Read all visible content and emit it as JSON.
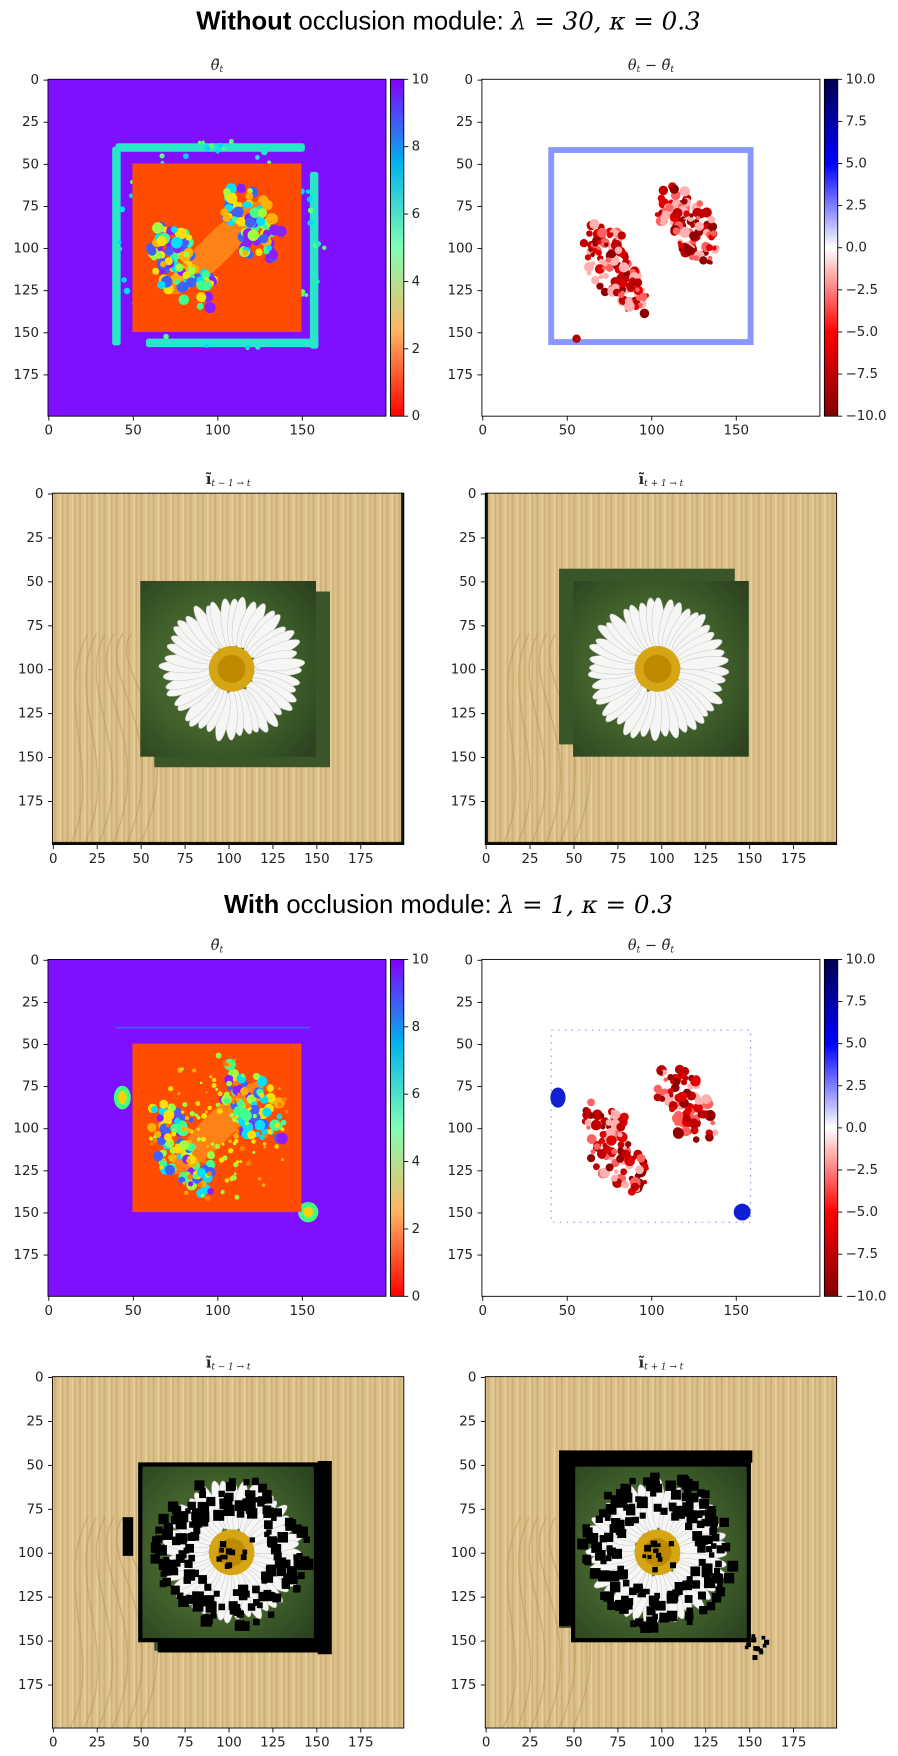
{
  "section_titles": [
    {
      "bold": "Without",
      "text": "occlusion module:",
      "math": "λ = 30, κ = 0.3"
    },
    {
      "bold": "With",
      "text": "occlusion module:",
      "math": "λ = 1, κ = 0.3"
    }
  ],
  "chart_data": [
    {
      "type": "heatmap",
      "title": [
        {
          "text": "θ̃"
        },
        {
          "sub": "t"
        }
      ],
      "xlim": [
        -0.5,
        199.5
      ],
      "ylim": [
        199.5,
        -0.5
      ],
      "xticks": [
        0,
        50,
        100,
        150
      ],
      "yticks": [
        0,
        25,
        50,
        75,
        100,
        125,
        150,
        175
      ],
      "colorbar": {
        "colormap": "rainbow_r",
        "lim": [
          0,
          10
        ],
        "ticks": [
          0,
          2,
          4,
          6,
          8,
          10
        ]
      }
    },
    {
      "type": "heatmap",
      "title": [
        {
          "text": "θ"
        },
        {
          "sub": "t"
        },
        {
          "text": " − θ̃"
        },
        {
          "sub": "t"
        }
      ],
      "xlim": [
        -0.5,
        199.5
      ],
      "ylim": [
        199.5,
        -0.5
      ],
      "xticks": [
        0,
        50,
        100,
        150
      ],
      "yticks": [
        0,
        25,
        50,
        75,
        100,
        125,
        150,
        175
      ],
      "colorbar": {
        "colormap": "seismic_r",
        "lim": [
          -10,
          10
        ],
        "ticks": [
          {
            "value": -10,
            "label": "−10.0"
          },
          {
            "value": -7.5,
            "label": "−7.5"
          },
          {
            "value": -5,
            "label": "−5.0"
          },
          {
            "value": -2.5,
            "label": "−2.5"
          },
          {
            "value": 0,
            "label": "0.0"
          },
          {
            "value": 2.5,
            "label": "2.5"
          },
          {
            "value": 5,
            "label": "5.0"
          },
          {
            "value": 7.5,
            "label": "7.5"
          },
          {
            "value": 10,
            "label": "10.0"
          }
        ]
      }
    },
    {
      "type": "image",
      "title": [
        {
          "text": "ĩ"
        },
        {
          "sub": "t − 1 → t"
        }
      ],
      "xlim": [
        -0.5,
        199.5
      ],
      "ylim": [
        199.5,
        -0.5
      ],
      "xticks": [
        0,
        25,
        50,
        75,
        100,
        125,
        150,
        175
      ],
      "yticks": [
        0,
        25,
        50,
        75,
        100,
        125,
        150,
        175
      ]
    },
    {
      "type": "image",
      "title": [
        {
          "text": "ĩ"
        },
        {
          "sub": "t + 1 → t"
        }
      ],
      "xlim": [
        -0.5,
        199.5
      ],
      "ylim": [
        199.5,
        -0.5
      ],
      "xticks": [
        0,
        25,
        50,
        75,
        100,
        125,
        150,
        175
      ],
      "yticks": [
        0,
        25,
        50,
        75,
        100,
        125,
        150,
        175
      ]
    },
    {
      "type": "heatmap",
      "title": [
        {
          "text": "θ̃"
        },
        {
          "sub": "t"
        }
      ],
      "xlim": [
        -0.5,
        199.5
      ],
      "ylim": [
        199.5,
        -0.5
      ],
      "xticks": [
        0,
        50,
        100,
        150
      ],
      "yticks": [
        0,
        25,
        50,
        75,
        100,
        125,
        150,
        175
      ],
      "colorbar": {
        "colormap": "rainbow_r",
        "lim": [
          0,
          10
        ],
        "ticks": [
          0,
          2,
          4,
          6,
          8,
          10
        ]
      }
    },
    {
      "type": "heatmap",
      "title": [
        {
          "text": "θ"
        },
        {
          "sub": "t"
        },
        {
          "text": " − θ̃"
        },
        {
          "sub": "t"
        }
      ],
      "xlim": [
        -0.5,
        199.5
      ],
      "ylim": [
        199.5,
        -0.5
      ],
      "xticks": [
        0,
        50,
        100,
        150
      ],
      "yticks": [
        0,
        25,
        50,
        75,
        100,
        125,
        150,
        175
      ],
      "colorbar": {
        "colormap": "seismic_r",
        "lim": [
          -10,
          10
        ],
        "ticks": [
          {
            "value": -10,
            "label": "−10.0"
          },
          {
            "value": -7.5,
            "label": "−7.5"
          },
          {
            "value": -5,
            "label": "−5.0"
          },
          {
            "value": -2.5,
            "label": "−2.5"
          },
          {
            "value": 0,
            "label": "0.0"
          },
          {
            "value": 2.5,
            "label": "2.5"
          },
          {
            "value": 5,
            "label": "5.0"
          },
          {
            "value": 7.5,
            "label": "7.5"
          },
          {
            "value": 10,
            "label": "10.0"
          }
        ]
      }
    },
    {
      "type": "image",
      "title": [
        {
          "text": "ĩ"
        },
        {
          "sub": "t − 1 → t"
        }
      ],
      "xlim": [
        -0.5,
        199.5
      ],
      "ylim": [
        199.5,
        -0.5
      ],
      "xticks": [
        0,
        25,
        50,
        75,
        100,
        125,
        150,
        175
      ],
      "yticks": [
        0,
        25,
        50,
        75,
        100,
        125,
        150,
        175
      ]
    },
    {
      "type": "image",
      "title": [
        {
          "text": "ĩ"
        },
        {
          "sub": "t + 1 → t"
        }
      ],
      "xlim": [
        -0.5,
        199.5
      ],
      "ylim": [
        199.5,
        -0.5
      ],
      "xticks": [
        0,
        25,
        50,
        75,
        100,
        125,
        150,
        175
      ],
      "yticks": [
        0,
        25,
        50,
        75,
        100,
        125,
        150,
        175
      ]
    }
  ]
}
